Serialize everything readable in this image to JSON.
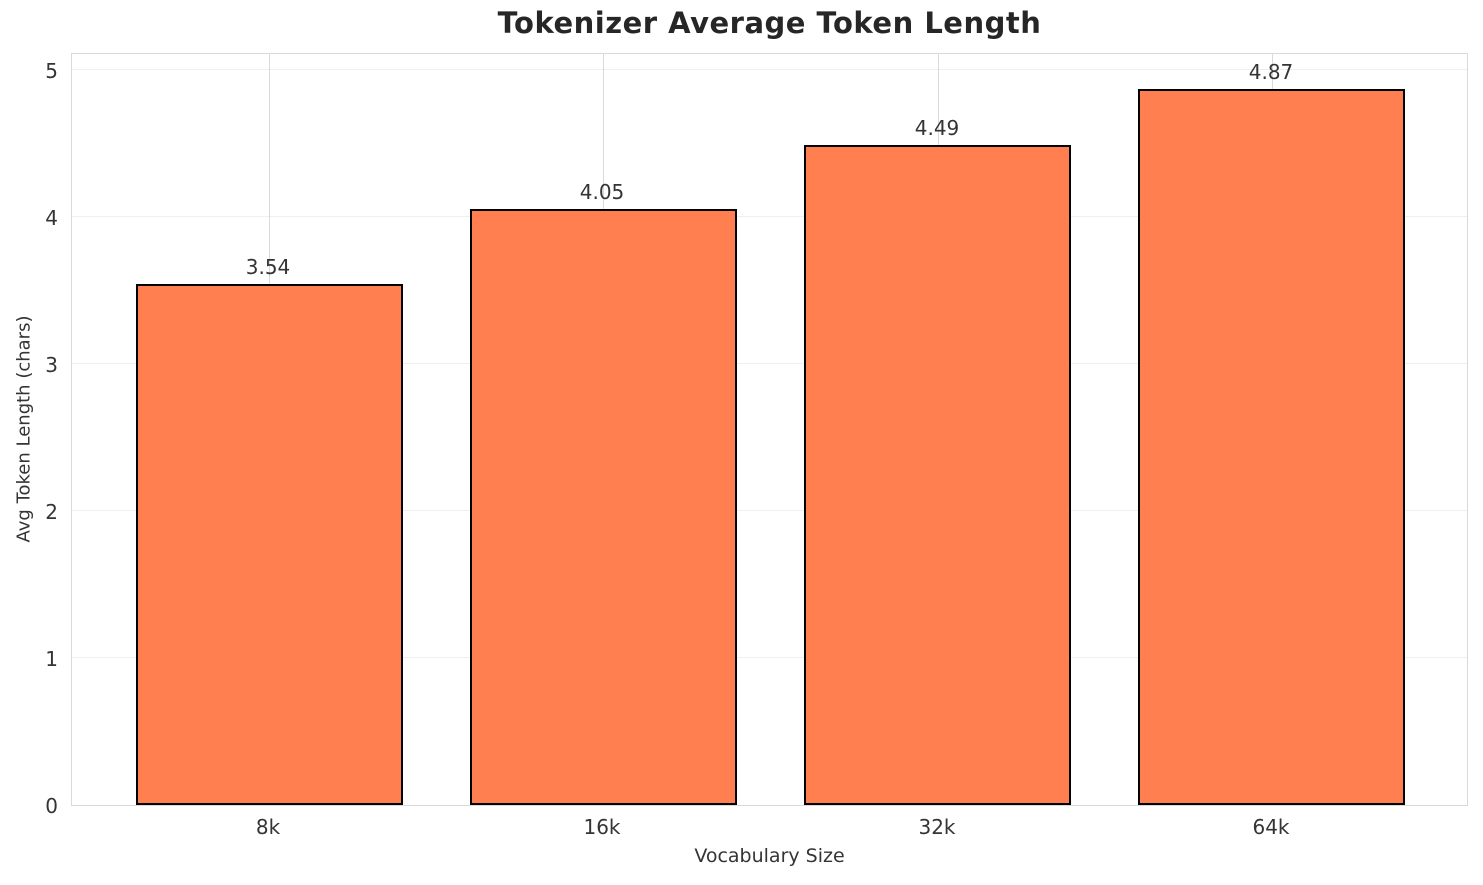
{
  "chart_data": {
    "type": "bar",
    "title": "Tokenizer Average Token Length",
    "xlabel": "Vocabulary Size",
    "ylabel": "Avg Token Length (chars)",
    "categories": [
      "8k",
      "16k",
      "32k",
      "64k"
    ],
    "values": [
      3.54,
      4.05,
      4.49,
      4.87
    ],
    "value_labels": [
      "3.54",
      "4.05",
      "4.49",
      "4.87"
    ],
    "yticks": [
      0,
      1,
      2,
      3,
      4,
      5
    ],
    "ylim": [
      0,
      5.12
    ],
    "grid": true,
    "legend": false,
    "colors": {
      "bar_fill": "#FF7F50",
      "bar_edge": "#000000",
      "grid_horizontal": "#efefef",
      "grid_vertical": "#d9d9d9",
      "spine": "#d9d9d9",
      "title_text": "#262626",
      "tick_text": "#343434"
    }
  }
}
